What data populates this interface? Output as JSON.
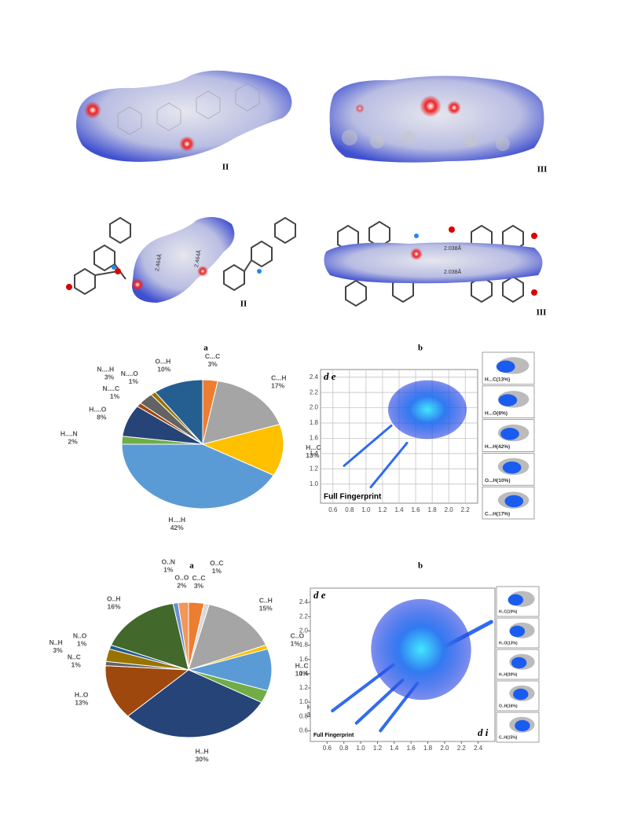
{
  "molecules": [
    {
      "label": "II"
    },
    {
      "label": "III"
    },
    {
      "label": "II",
      "distances": [
        "2.464Å",
        "2.464Å"
      ]
    },
    {
      "label": "III",
      "distances": [
        "2.038Å",
        "2.038Å"
      ]
    }
  ],
  "chart_data": [
    {
      "type": "pie",
      "title": "a",
      "categories": [
        "C...C",
        "C...H",
        "H...C",
        "H....H",
        "H....N",
        "H....O",
        "N....C",
        "N....H",
        "N....O",
        "O...H"
      ],
      "values": [
        3,
        17,
        13,
        42,
        2,
        8,
        1,
        3,
        1,
        10
      ],
      "value_labels": [
        "3%",
        "17%",
        "13%",
        "42%",
        "2%",
        "8%",
        "1%",
        "3%",
        "1%",
        "10%"
      ],
      "colors": [
        "#ed7d31",
        "#a5a5a5",
        "#ffc000",
        "#5b9bd5",
        "#70ad47",
        "#264478",
        "#9e480e",
        "#636363",
        "#997300",
        "#255e91"
      ]
    },
    {
      "type": "fingerprint",
      "title": "b",
      "y_label": "d e",
      "caption": "Full Fingerprint",
      "xlim": [
        0.45,
        2.35
      ],
      "ylim": [
        0.75,
        2.5
      ],
      "xticks": [
        0.6,
        0.8,
        {
          "value": 1,
          "label": "1.0"
        },
        1.2,
        1.4,
        1.6,
        1.8,
        {
          "value": 2,
          "label": "2.0"
        },
        2.2
      ],
      "yticks": [
        {
          "value": 1,
          "label": "1.0"
        },
        1.2,
        1.4,
        1.6,
        1.8,
        {
          "value": 2,
          "label": "2.0"
        },
        2.2,
        2.4
      ],
      "grid": true,
      "panels": [
        "H...C(13%)",
        "H...O(8%)",
        "H...H(42%)",
        "O...H(10%)",
        "C...H(17%)"
      ]
    },
    {
      "type": "pie",
      "title": "a",
      "categories": [
        "C..C",
        "O..C",
        "C..H",
        "C..O",
        "H..C",
        "H...N",
        "H..H",
        "H..O",
        "N..C",
        "N..H",
        "N..O",
        "O..H",
        "O..N",
        "O..O"
      ],
      "values": [
        3,
        1,
        15,
        1,
        10,
        3,
        30,
        13,
        1,
        3,
        1,
        16,
        1,
        2
      ],
      "value_labels": [
        "3%",
        "1%",
        "15%",
        "1%",
        "10%",
        "3%",
        "30%",
        "13%",
        "1%",
        "3%",
        "1%",
        "16%",
        "1%",
        "2%"
      ],
      "colors": [
        "#ed7d31",
        "#d9d9d9",
        "#a5a5a5",
        "#ffc000",
        "#5b9bd5",
        "#70ad47",
        "#264478",
        "#9e480e",
        "#636363",
        "#997300",
        "#255e91",
        "#43682b",
        "#698ed0",
        "#f1975a"
      ]
    },
    {
      "type": "fingerprint",
      "title": "b",
      "y_label": "d e",
      "x_label": "d i",
      "caption": "Full Fingerprint",
      "xlim": [
        0.4,
        2.6
      ],
      "ylim": [
        0.45,
        2.6
      ],
      "xticks": [
        0.6,
        0.8,
        {
          "value": 1,
          "label": "1.0"
        },
        1.2,
        1.4,
        1.6,
        1.8,
        {
          "value": 2,
          "label": "2.0"
        },
        2.2,
        2.4
      ],
      "yticks": [
        0.6,
        0.8,
        {
          "value": 1,
          "label": "1.0"
        },
        1.2,
        1.4,
        1.6,
        1.8,
        {
          "value": 2,
          "label": "2.0"
        },
        2.2,
        2.4
      ],
      "grid": false,
      "panels": [
        "H..C(10%)",
        "H..O(13%)",
        "H..H(30%)",
        "O..H(16%)",
        "C..H(15%)"
      ]
    }
  ]
}
